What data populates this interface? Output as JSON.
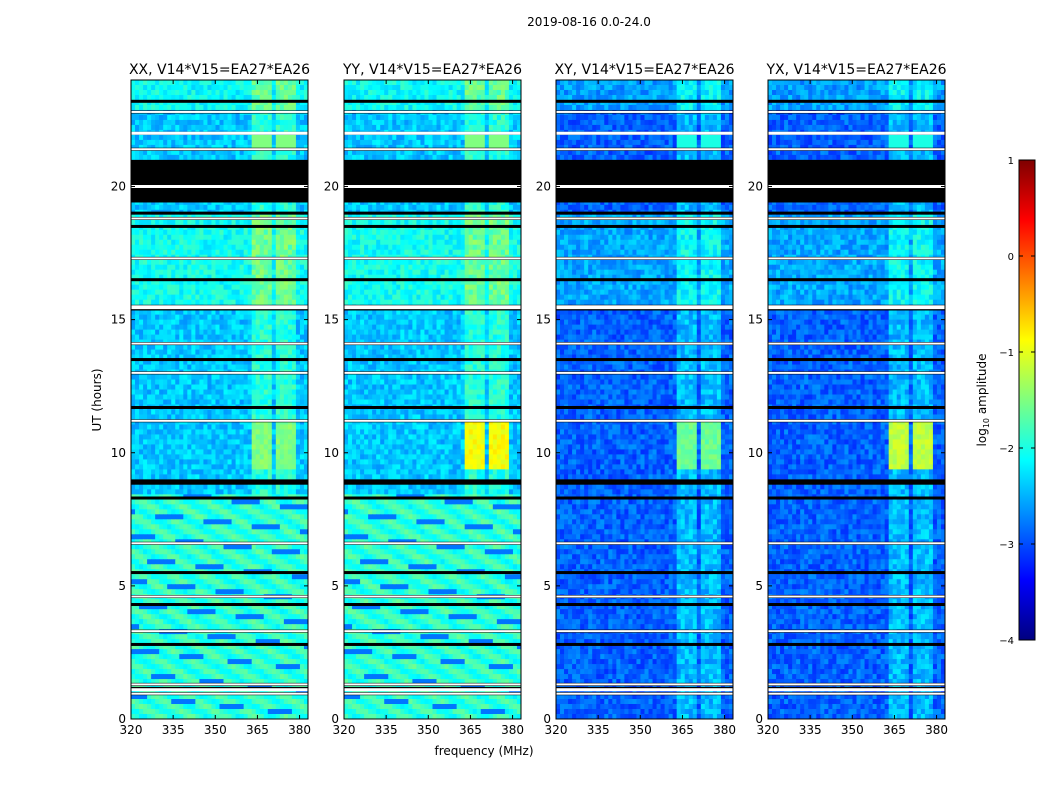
{
  "figure": {
    "suptitle": "2019-08-16 0.0-24.0",
    "xlabel": "frequency (MHz)",
    "ylabel": "UT (hours)"
  },
  "colorbar": {
    "label_prefix": "log",
    "label_sub": "10",
    "label_suffix": " amplitude",
    "ticks": [
      1,
      0,
      -1,
      -2,
      -3,
      -4
    ],
    "tick_labels": [
      "1",
      "0",
      "−1",
      "−2",
      "−3",
      "−4"
    ],
    "range": [
      -4,
      1
    ],
    "stops": [
      "#00007f",
      "#0000ff",
      "#007fff",
      "#00ffff",
      "#7fff7f",
      "#ffff00",
      "#ff7f00",
      "#ff0000",
      "#7f0000"
    ]
  },
  "chart_data": {
    "type": "heatmap",
    "x": {
      "range": [
        320,
        383
      ],
      "ticks": [
        320,
        335,
        350,
        365,
        380
      ],
      "tick_labels": [
        "320",
        "335",
        "350",
        "365",
        "380"
      ]
    },
    "y": {
      "range": [
        0,
        24
      ],
      "ticks": [
        0,
        5,
        10,
        15,
        20
      ],
      "tick_labels": [
        "0",
        "5",
        "10",
        "15",
        "20"
      ]
    },
    "panels": [
      {
        "title": "XX, V14*V15=EA27*EA26",
        "pol": "XX",
        "fringes": true,
        "level": -2.4,
        "rfi_peak": -1.5
      },
      {
        "title": "YY, V14*V15=EA27*EA26",
        "pol": "YY",
        "fringes": true,
        "level": -2.4,
        "rfi_peak": -0.9
      },
      {
        "title": "XY, V14*V15=EA27*EA26",
        "pol": "XY",
        "fringes": false,
        "level": -2.9,
        "rfi_peak": -1.6
      },
      {
        "title": "YX, V14*V15=EA27*EA26",
        "pol": "YX",
        "fringes": false,
        "level": -2.9,
        "rfi_peak": -1.2
      }
    ],
    "flagged_hours": [
      [
        19.4,
        21.0
      ],
      [
        8.8,
        9.0
      ]
    ],
    "rfi_channels_mhz": [
      364.5,
      368.0,
      372.5,
      376.5
    ],
    "gap_hours": [
      0.95,
      1.15,
      1.3,
      2.8,
      3.3,
      4.3,
      4.6,
      5.5,
      6.6,
      8.3,
      11.2,
      11.7,
      13.0,
      13.5,
      14.1,
      15.4,
      15.5,
      16.5,
      17.3,
      18.5,
      18.8,
      19.0,
      21.4,
      22.0,
      22.8,
      23.2
    ]
  }
}
